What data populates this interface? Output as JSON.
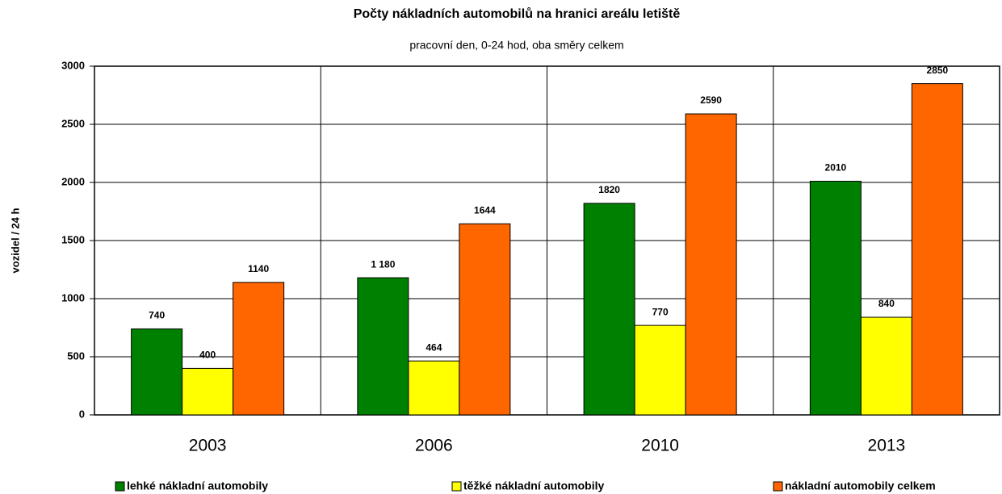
{
  "chart_data": {
    "type": "bar",
    "title": "Počty nákladních automobilů na hranici areálu letiště",
    "subtitle": "pracovní den, 0-24 hod, oba směry celkem",
    "y_label": "vozidel / 24 h",
    "categories": [
      "2003",
      "2006",
      "2010",
      "2013"
    ],
    "series": [
      {
        "name": "lehké nákladní automobily",
        "color": "#008000",
        "values": [
          740,
          1180,
          1820,
          2010
        ],
        "value_labels": [
          "740",
          "1 180",
          "1820",
          "2010"
        ]
      },
      {
        "name": "těžké nákladní automobily",
        "color": "#ffff00",
        "values": [
          400,
          464,
          770,
          840
        ]
      },
      {
        "name": "nákladní automobily celkem",
        "color": "#ff6600",
        "values": [
          1140,
          1644,
          2590,
          2850
        ]
      }
    ],
    "ylim": [
      0,
      3000
    ],
    "yticks": [
      0,
      500,
      1000,
      1500,
      2000,
      2500,
      3000
    ],
    "grid": true,
    "legend": "bottom"
  }
}
